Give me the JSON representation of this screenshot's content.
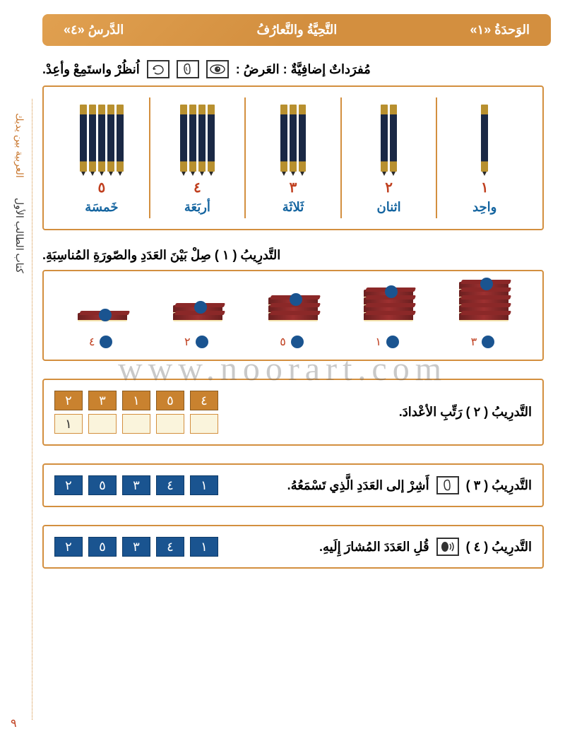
{
  "header": {
    "unit": "الوَحدَةُ  «١»",
    "topic": "التَّحِيَّةُ والتَّعارُفُ",
    "lesson": "الدَّرسُ  «٤»"
  },
  "sidebar": {
    "title1": "العربية بين يديك",
    "title2": "كتاب الطالب الأول"
  },
  "vocab": {
    "label_prefix": "مُفرَداتٌ إضافِيَّةٌ :  العَرضُ :",
    "label_suffix": "اُنظُرْ واستَمِعْ وأعِدْ.",
    "items": [
      {
        "count": 1,
        "numeral": "١",
        "word": "واحِد"
      },
      {
        "count": 2,
        "numeral": "٢",
        "word": "اثنان"
      },
      {
        "count": 3,
        "numeral": "٣",
        "word": "ثَلاثَة"
      },
      {
        "count": 4,
        "numeral": "٤",
        "word": "أربَعَة"
      },
      {
        "count": 5,
        "numeral": "٥",
        "word": "خَمسَة"
      }
    ]
  },
  "ex1": {
    "label": "التَّدرِيبُ ( ١ )  صِلْ بَيْنَ العَدَدِ والصّورَةِ المُناسِبَةِ.",
    "book_stacks": [
      5,
      4,
      3,
      2,
      1
    ],
    "bottom_numbers": [
      "٣",
      "١",
      "٥",
      "٢",
      "٤"
    ]
  },
  "ex2": {
    "label": "التَّدرِيبُ ( ٢ )  رَتِّبِ الأعْدادَ.",
    "top_boxes": [
      "٤",
      "٥",
      "١",
      "٣",
      "٢"
    ],
    "answer_first": "١"
  },
  "ex3": {
    "label": "التَّدرِيبُ ( ٣ )",
    "instruction": "أَشِرْ إلى العَدَدِ الَّذِي تَسْمَعُهُ.",
    "boxes": [
      "١",
      "٤",
      "٣",
      "٥",
      "٢"
    ]
  },
  "ex4": {
    "label": "التَّدرِيبُ ( ٤ )",
    "instruction": "قُلِ العَدَدَ المُشارَ إِلَيهِ.",
    "boxes": [
      "١",
      "٤",
      "٣",
      "٥",
      "٢"
    ]
  },
  "page_number": "٩",
  "watermark": "www.noorart.com",
  "colors": {
    "header_bg": "#d38f3f",
    "border": "#d38f3f",
    "red_num": "#c04020",
    "blue_text": "#1565a0",
    "blue_box": "#1a5490",
    "orange_box": "#c9822f"
  }
}
